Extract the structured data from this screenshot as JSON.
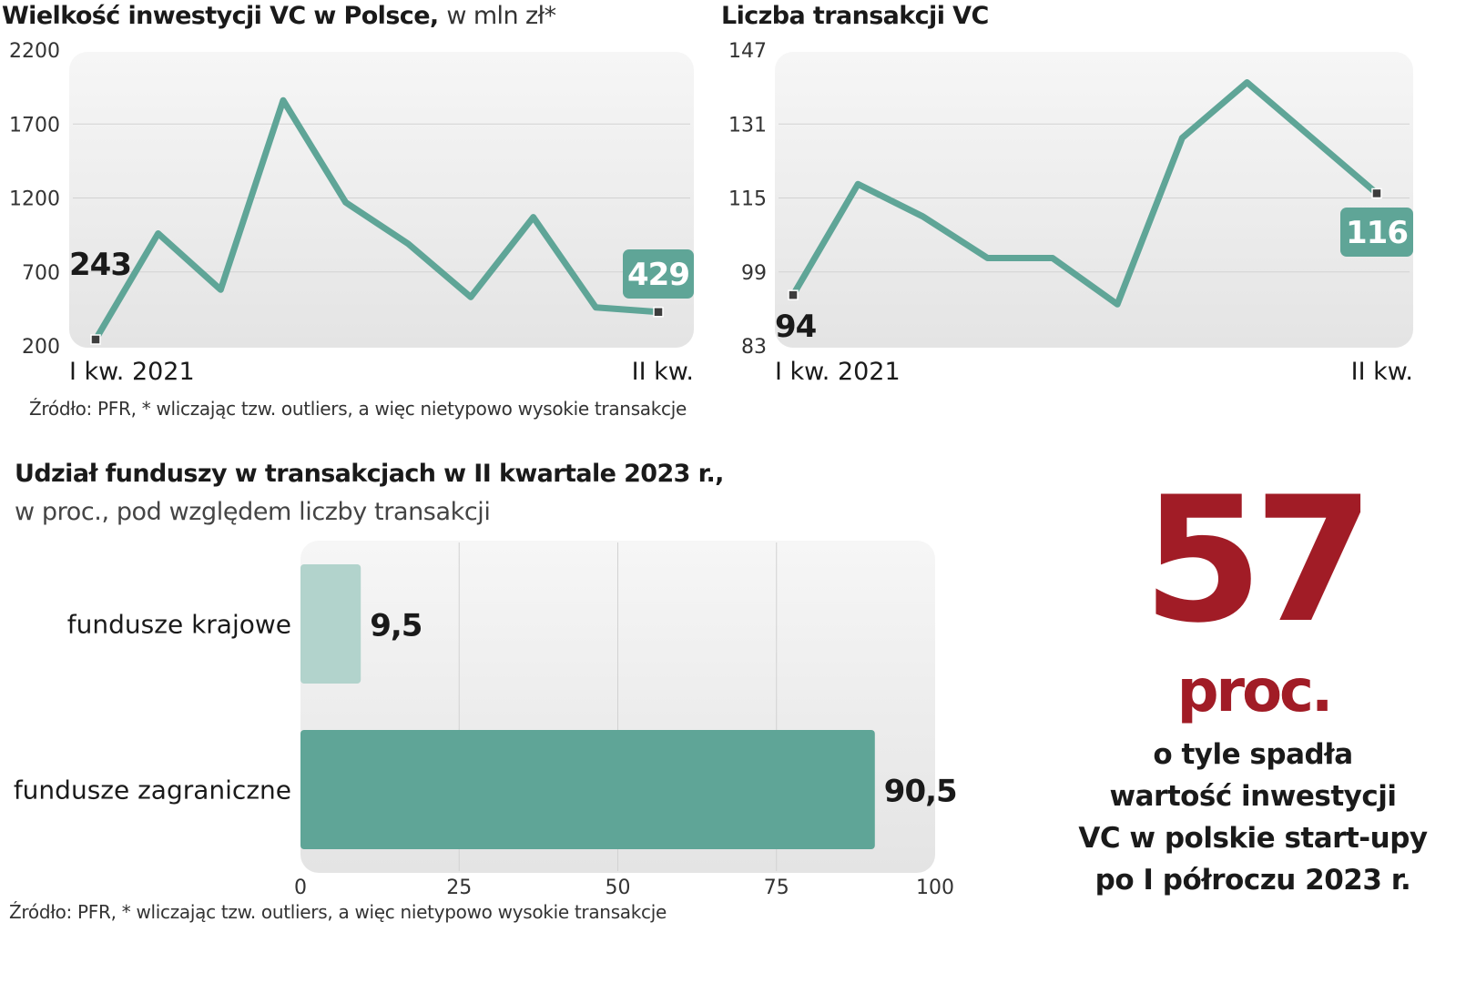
{
  "chart_data": [
    {
      "type": "line",
      "title": "Wielkość inwestycji VC w Polsce,",
      "title_suffix": "w mln zł*",
      "x_labels": [
        "I kw. 2021",
        "II kw."
      ],
      "ylim": [
        200,
        2200
      ],
      "y_ticks": [
        "2200",
        "1700",
        "1200",
        "700",
        "200"
      ],
      "series": [
        {
          "values": [
            243,
            960,
            580,
            1860,
            1170,
            890,
            530,
            1070,
            460,
            429
          ]
        }
      ],
      "first_label": "243",
      "last_label": "429",
      "color": "#5fa597"
    },
    {
      "type": "line",
      "title": "Liczba transakcji VC",
      "x_labels": [
        "I kw. 2021",
        "II kw."
      ],
      "ylim": [
        83,
        147
      ],
      "y_ticks": [
        "147",
        "131",
        "115",
        "99",
        "83"
      ],
      "series": [
        {
          "values": [
            94,
            118,
            111,
            102,
            102,
            92,
            128,
            140,
            128,
            116
          ]
        }
      ],
      "first_label": "94",
      "last_label": "116",
      "color": "#5fa597"
    },
    {
      "type": "bar",
      "orientation": "horizontal",
      "title": "Udział funduszy w transakcjach w II kwartale 2023 r.,",
      "subtitle": "w proc., pod względem liczby transakcji",
      "categories": [
        "fundusze krajowe",
        "fundusze zagraniczne"
      ],
      "values": [
        9.5,
        90.5
      ],
      "value_labels": [
        "9,5",
        "90,5"
      ],
      "xlim": [
        0,
        100
      ],
      "x_ticks": [
        "0",
        "25",
        "50",
        "75",
        "100"
      ],
      "colors": [
        "#b2d3cc",
        "#5fa597"
      ]
    }
  ],
  "source_top": "Źródło: PFR, * wliczając tzw. outliers, a więc nietypowo wysokie transakcje",
  "source_bottom": "Źródło: PFR, * wliczając tzw. outliers, a więc nietypowo wysokie transakcje",
  "highlight": {
    "number": "57",
    "unit": "proc.",
    "text": [
      "o tyle spadła",
      "wartość inwestycji",
      "VC w polskie start-upy",
      "po I półroczu 2023 r."
    ],
    "color": "#a11c26"
  }
}
